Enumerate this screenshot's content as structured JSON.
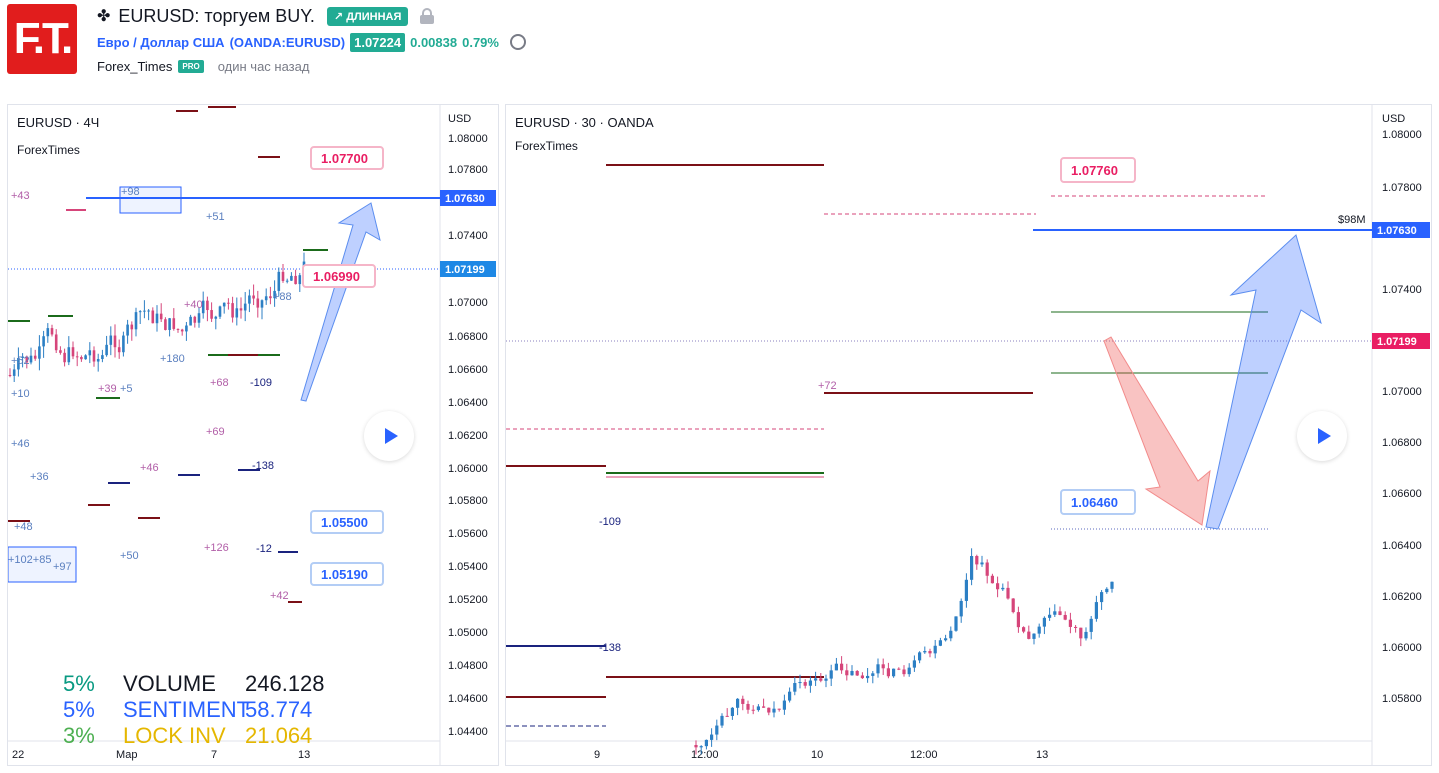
{
  "header": {
    "logo_text": "F.T.",
    "title": "EURUSD: торгуем BUY.",
    "badge_long": "↗ ДЛИННАЯ",
    "symbol_full": "Евро / Доллар США",
    "symbol_code": "(OANDA:EURUSD)",
    "price": "1.07224",
    "change": "0.00838",
    "change_pct": "0.79%",
    "author": "Forex_Times",
    "pro_badge": "PRO",
    "time_ago": "один час назад"
  },
  "left_chart": {
    "legend": "EURUSD · 4Ч",
    "indicator": "ForexTimes",
    "currency": "USD",
    "y_ticks": [
      "1.08000",
      "1.07800",
      "1.07400",
      "1.07000",
      "1.06800",
      "1.06600",
      "1.06400",
      "1.06200",
      "1.06000",
      "1.05800",
      "1.05600",
      "1.05400",
      "1.05200",
      "1.05000",
      "1.04800",
      "1.04600",
      "1.04400"
    ],
    "x_ticks": [
      "22",
      "Мар",
      "7",
      "13"
    ],
    "price_tags": [
      {
        "text": "1.07630",
        "color": "#2962ff"
      },
      {
        "text": "1.07199",
        "color": "#1e88e5"
      }
    ],
    "callouts": [
      {
        "text": "1.07700",
        "color": "#e91e63"
      },
      {
        "text": "1.06990",
        "color": "#e91e63"
      },
      {
        "text": "1.05500",
        "color": "#2962ff"
      },
      {
        "text": "1.05190",
        "color": "#2962ff"
      }
    ],
    "level_labels": [
      "+43",
      "+98",
      "+51",
      "+40",
      "+52",
      "+10",
      "+39",
      "+5",
      "+180",
      "+68",
      "-109",
      "+46",
      "+69",
      "-138",
      "+36",
      "+46",
      "+48",
      "+102+85",
      "+126",
      "-12",
      "+50",
      "+42",
      "+97",
      "+88"
    ],
    "stats": [
      {
        "pct": "5%",
        "label": "VOLUME",
        "value": "246.128",
        "color_pct": "#089981",
        "color": "#131722"
      },
      {
        "pct": "5%",
        "label": "SENTIMENT",
        "value": "58.774",
        "color_pct": "#2962ff",
        "color": "#2962ff"
      },
      {
        "pct": "3%",
        "label": "LOCK INV",
        "value": "21.064",
        "color_pct": "#4caf50",
        "color": "#e5b700"
      }
    ]
  },
  "right_chart": {
    "legend": "EURUSD · 30 · OANDA",
    "indicator": "ForexTimes",
    "currency": "USD",
    "y_ticks": [
      "1.08000",
      "1.07800",
      "1.07400",
      "1.07000",
      "1.06800",
      "1.06600",
      "1.06400",
      "1.06200",
      "1.06000",
      "1.05800"
    ],
    "x_ticks": [
      "9",
      "12:00",
      "10",
      "12:00",
      "13"
    ],
    "price_tags": [
      {
        "text": "1.07630",
        "color": "#2962ff"
      },
      {
        "text": "1.07199",
        "color": "#e91e63"
      }
    ],
    "size_label": "$98M",
    "callouts": [
      {
        "text": "1.07760",
        "color": "#e91e63"
      },
      {
        "text": "1.06460",
        "color": "#2962ff"
      }
    ],
    "level_labels": [
      "+72",
      "-109",
      "-138"
    ]
  },
  "colors": {
    "up": "#2c7fc4",
    "down": "#d6457a",
    "blue_level": "#2962ff",
    "dark_red": "#7b1016",
    "green": "#1b6b1b",
    "pink": "#d6457a"
  }
}
